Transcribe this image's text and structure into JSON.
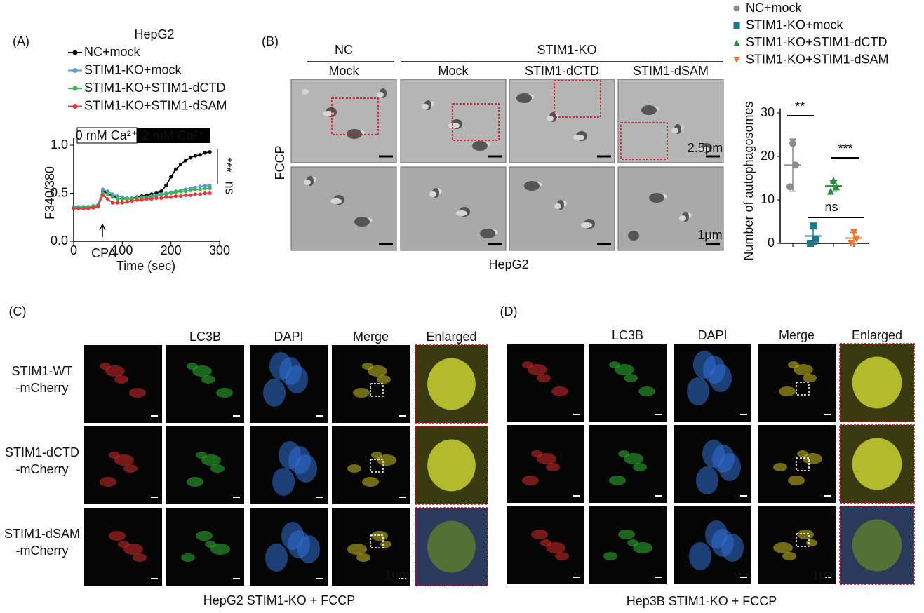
{
  "panel_labels": [
    "(A)",
    "(B)",
    "(C)",
    "(D)"
  ],
  "chart_data": [
    {
      "type": "line",
      "title": "HepG2",
      "xlabel": "Time (sec)",
      "ylabel": "F340/380",
      "xlim": [
        0,
        300
      ],
      "xticks": [
        0,
        100,
        200,
        300
      ],
      "ylim": [
        0,
        1
      ],
      "yticks": [
        {
          "value": 0,
          "label": "0.0"
        },
        {
          "value": 0.5,
          "label": "0.5"
        },
        {
          "value": 1,
          "label": "1.0"
        }
      ],
      "annotations": {
        "cpa": "CPA",
        "calcium": [
          "0 mM Ca²⁺",
          "2 mM Ca²⁺"
        ],
        "significance": [
          "***",
          "ns"
        ]
      },
      "x": [
        0,
        10,
        20,
        30,
        40,
        50,
        60,
        70,
        80,
        90,
        100,
        110,
        120,
        130,
        140,
        150,
        160,
        170,
        180,
        190,
        200,
        210,
        220,
        230,
        240,
        250,
        260,
        270,
        280
      ],
      "series": [
        {
          "name": "NC+mock",
          "color": "#000000",
          "values": [
            0.35,
            0.35,
            0.35,
            0.35,
            0.35,
            0.36,
            0.52,
            0.5,
            0.47,
            0.45,
            0.44,
            0.44,
            0.45,
            0.46,
            0.47,
            0.48,
            0.49,
            0.5,
            0.52,
            0.58,
            0.67,
            0.75,
            0.8,
            0.84,
            0.87,
            0.89,
            0.9,
            0.92,
            0.93
          ]
        },
        {
          "name": "STIM1-KO+mock",
          "color": "#5b9bd5",
          "values": [
            0.36,
            0.36,
            0.36,
            0.36,
            0.37,
            0.38,
            0.54,
            0.52,
            0.49,
            0.47,
            0.46,
            0.45,
            0.45,
            0.45,
            0.46,
            0.46,
            0.47,
            0.48,
            0.49,
            0.5,
            0.51,
            0.52,
            0.53,
            0.54,
            0.55,
            0.56,
            0.57,
            0.58,
            0.58
          ]
        },
        {
          "name": "STIM1-KO+STIM1-dCTD",
          "color": "#3cb44b",
          "values": [
            0.35,
            0.35,
            0.35,
            0.36,
            0.36,
            0.37,
            0.5,
            0.49,
            0.46,
            0.44,
            0.44,
            0.44,
            0.44,
            0.45,
            0.45,
            0.46,
            0.46,
            0.47,
            0.48,
            0.49,
            0.5,
            0.51,
            0.52,
            0.52,
            0.53,
            0.54,
            0.54,
            0.55,
            0.55
          ]
        },
        {
          "name": "STIM1-KO+STIM1-dSAM",
          "color": "#e8383d",
          "values": [
            0.34,
            0.34,
            0.34,
            0.34,
            0.35,
            0.36,
            0.48,
            0.44,
            0.4,
            0.4,
            0.4,
            0.41,
            0.42,
            0.43,
            0.43,
            0.44,
            0.44,
            0.45,
            0.45,
            0.46,
            0.46,
            0.47,
            0.47,
            0.48,
            0.48,
            0.49,
            0.49,
            0.5,
            0.5
          ]
        }
      ]
    },
    {
      "type": "dot",
      "ylabel": "Number of  autophagosomes",
      "ylim": [
        0,
        31
      ],
      "yticks": [
        0,
        10,
        20,
        30
      ],
      "annotations": {
        "significance": [
          "**",
          "***",
          "ns"
        ]
      },
      "series": [
        {
          "name": "NC+mock",
          "color": "#8c8c8c",
          "marker": "circle",
          "values": [
            13,
            18,
            23
          ],
          "mean": 18,
          "sd": 6
        },
        {
          "name": "STIM1-KO+mock",
          "color": "#1a7a8c",
          "marker": "square",
          "values": [
            0,
            1,
            4
          ],
          "mean": 1.7,
          "sd": 2
        },
        {
          "name": "STIM1-KO+STIM1-dCTD",
          "color": "#2e8b3e",
          "marker": "triangle",
          "values": [
            12,
            13,
            14.5
          ],
          "mean": 13.2,
          "sd": 1.2
        },
        {
          "name": "STIM1-KO+STIM1-dSAM",
          "color": "#e8762c",
          "marker": "triangle-down",
          "values": [
            0,
            1,
            2.5
          ],
          "mean": 1.2,
          "sd": 1.3
        }
      ]
    }
  ],
  "panel_b": {
    "group_headers": [
      "NC",
      "STIM1-KO"
    ],
    "column_headers": [
      "Mock",
      "Mock",
      "STIM1-dCTD",
      "STIM1-dSAM"
    ],
    "row_label": "FCCP",
    "scale_bars": [
      "2.5μm",
      "1μm"
    ],
    "caption": "HepG2"
  },
  "panel_c": {
    "column_headers": [
      "LC3B",
      "DAPI",
      "Merge",
      "Enlarged"
    ],
    "row_labels": [
      [
        "STIM1-WT",
        "-mCherry"
      ],
      [
        "STIM1-dCTD",
        "-mCherry"
      ],
      [
        "STIM1-dSAM",
        "-mCherry"
      ]
    ],
    "scale_bar": "1μm",
    "caption": "HepG2 STIM1-KO + FCCP"
  },
  "panel_d": {
    "column_headers": [
      "LC3B",
      "DAPI",
      "Merge",
      "Enlarged"
    ],
    "scale_bar": "1μm",
    "caption": "Hep3B STIM1-KO + FCCP"
  }
}
